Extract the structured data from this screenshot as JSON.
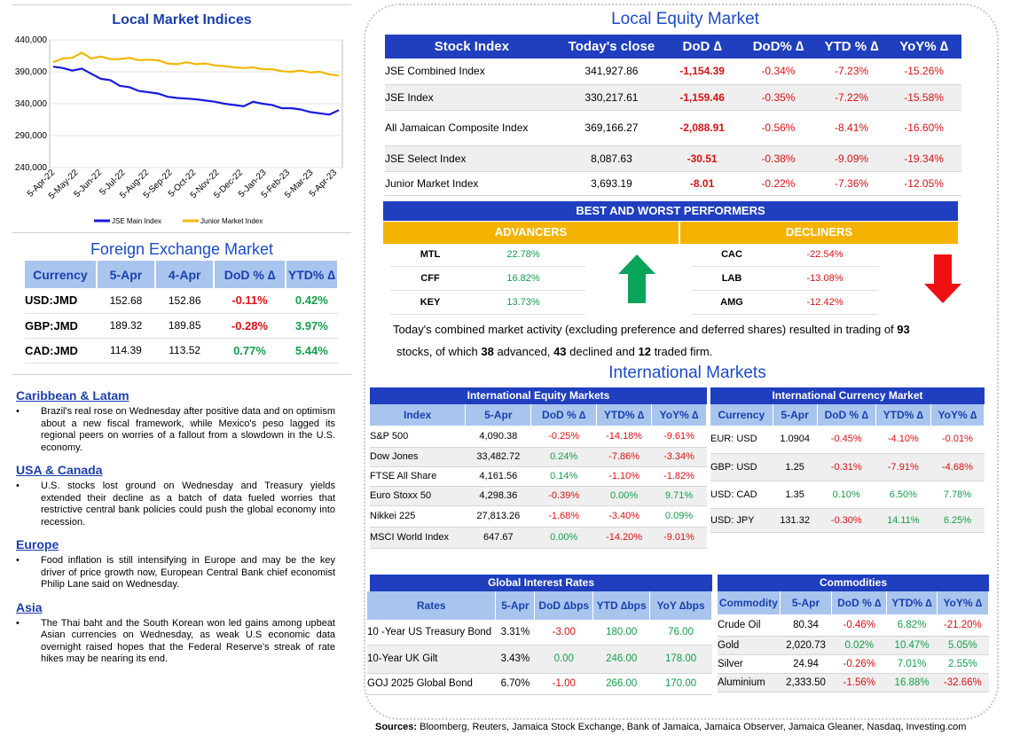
{
  "local_indices": {
    "title": "Local Market Indices",
    "chart_data": {
      "type": "line",
      "title": "Local Market Indices",
      "ylim": [
        240000,
        440000
      ],
      "y_ticks": [
        "440,000",
        "390,000",
        "340,000",
        "290,000",
        "240,000"
      ],
      "y_tick_values": [
        440000,
        390000,
        340000,
        290000,
        240000
      ],
      "x_ticks": [
        "5-Apr-22",
        "5-May-22",
        "5-Jun-22",
        "5-Jul-22",
        "5-Aug-22",
        "5-Sep-22",
        "5-Oct-22",
        "5-Nov-22",
        "5-Dec-22",
        "5-Jan-23",
        "5-Feb-23",
        "5-Mar-23",
        "5-Apr-23"
      ],
      "series": [
        {
          "name": "JSE Main Index",
          "color": "#1a1adf",
          "values": [
            398000,
            396000,
            392000,
            395000,
            387000,
            379000,
            377000,
            368000,
            366000,
            360000,
            358000,
            356000,
            351000,
            349000,
            348000,
            347000,
            345000,
            343000,
            340000,
            338000,
            336000,
            343000,
            340000,
            338000,
            333000,
            333000,
            331000,
            327000,
            325000,
            323000,
            330000
          ]
        },
        {
          "name": "Junior Market Index",
          "color": "#f2b705",
          "values": [
            405000,
            411000,
            412000,
            420000,
            411000,
            414000,
            410000,
            410000,
            412000,
            408000,
            409000,
            408000,
            403000,
            402000,
            405000,
            402000,
            403000,
            400000,
            399000,
            397000,
            396000,
            397000,
            394000,
            394000,
            391000,
            390000,
            392000,
            389000,
            390000,
            386000,
            384000
          ]
        }
      ]
    }
  },
  "fx": {
    "title": "Foreign Exchange Market",
    "headers": [
      "Currency",
      "5-Apr",
      "4-Apr",
      "DoD % ∆",
      "YTD% ∆"
    ],
    "rows": [
      {
        "c": "USD:JMD",
        "a": "152.68",
        "b": "152.86",
        "d": "-0.11%",
        "y": "0.42%"
      },
      {
        "c": "GBP:JMD",
        "a": "189.32",
        "b": "189.85",
        "d": "-0.28%",
        "y": "3.97%"
      },
      {
        "c": "CAD:JMD",
        "a": "114.39",
        "b": "113.52",
        "d": "0.77%",
        "y": "5.44%"
      }
    ]
  },
  "news": [
    {
      "h": "Caribbean & Latam",
      "p": "Brazil's real rose on Wednesday after positive data and on optimism about a new fiscal framework, while Mexico's peso lagged its regional peers on worries of a fallout from a slowdown in the U.S. economy."
    },
    {
      "h": "USA & Canada",
      "p": "U.S. stocks lost ground on Wednesday and Treasury yields extended their decline as a batch of data fueled worries that restrictive central bank policies could push the global economy into recession."
    },
    {
      "h": "Europe",
      "p": "Food inflation is still intensifying in Europe and may be the key driver of price growth now, European Central Bank chief economist Philip Lane said on Wednesday."
    },
    {
      "h": "Asia",
      "p": "The Thai baht and the South Korean won led gains among upbeat Asian currencies on Wednesday, as weak U.S economic data overnight raised hopes that the Federal Reserve's streak of rate hikes may be nearing its end."
    }
  ],
  "local_equity": {
    "title": "Local Equity Market",
    "headers": [
      "Stock Index",
      "Today's close",
      "DoD  ∆",
      "DoD% ∆",
      "YTD % ∆",
      "YoY% ∆"
    ],
    "rows": [
      {
        "n": "JSE Combined Index",
        "c": "341,927.86",
        "d": "-1,154.39",
        "dp": "-0.34%",
        "y": "-7.23%",
        "yy": "-15.26%"
      },
      {
        "n": "JSE Index",
        "c": "330,217.61",
        "d": "-1,159.46",
        "dp": "-0.35%",
        "y": "-7.22%",
        "yy": "-15.58%"
      },
      {
        "n": "All Jamaican Composite Index",
        "c": "369,166.27",
        "d": "-2,088.91",
        "dp": "-0.56%",
        "y": "-8.41%",
        "yy": "-16.60%"
      },
      {
        "n": "JSE Select Index",
        "c": "8,087.63",
        "d": "-30.51",
        "dp": "-0.38%",
        "y": "-9.09%",
        "yy": "-19.34%"
      },
      {
        "n": "Junior Market Index",
        "c": "3,693.19",
        "d": "-8.01",
        "dp": "-0.22%",
        "y": "-7.36%",
        "yy": "-12.05%"
      }
    ]
  },
  "performers": {
    "title": "BEST AND WORST PERFORMERS",
    "adv_label": "ADVANCERS",
    "dec_label": "DECLINERS",
    "advancers": [
      {
        "t": "MTL",
        "v": "22.78%"
      },
      {
        "t": "CFF",
        "v": "16.82%"
      },
      {
        "t": "KEY",
        "v": "13.73%"
      }
    ],
    "decliners": [
      {
        "t": "CAC",
        "v": "-22.54%"
      },
      {
        "t": "LAB",
        "v": "-13.08%"
      },
      {
        "t": "AMG",
        "v": "-12.42%"
      }
    ]
  },
  "summary": {
    "t1": "Today's combined market activity (excluding preference and deferred shares) resulted in trading of ",
    "n1": "93",
    "t2": "stocks, of which ",
    "n2": "38",
    "t3": " advanced, ",
    "n3": "43",
    "t4": " declined and ",
    "n4": "12",
    "t5": " traded firm."
  },
  "intl_title": "International Markets",
  "intl_equity": {
    "title": "International Equity Markets",
    "headers": [
      "Index",
      "5-Apr",
      "DoD % ∆",
      "YTD% ∆",
      "YoY% ∆"
    ],
    "rows": [
      {
        "n": "S&P 500",
        "a": "4,090.38",
        "d": "-0.25%",
        "y": "-14.18%",
        "yy": "-9.61%"
      },
      {
        "n": "Dow Jones",
        "a": "33,482.72",
        "d": "0.24%",
        "y": "-7.86%",
        "yy": "-3.34%"
      },
      {
        "n": "FTSE All Share",
        "a": "4,161.56",
        "d": "0.14%",
        "y": "-1.10%",
        "yy": "-1.82%"
      },
      {
        "n": "Euro Stoxx 50",
        "a": "4,298.36",
        "d": "-0.39%",
        "y": "0.00%",
        "yy": "9.71%"
      },
      {
        "n": "Nikkei 225",
        "a": "27,813.26",
        "d": "-1.68%",
        "y": "-3.40%",
        "yy": "0.09%"
      },
      {
        "n": "MSCI World Index",
        "a": "647.67",
        "d": "0.00%",
        "y": "-14.20%",
        "yy": "-9.01%"
      }
    ]
  },
  "intl_currency": {
    "title": "International Currency Market",
    "headers": [
      "Currency",
      "5-Apr",
      "DoD % ∆",
      "YTD% ∆",
      "YoY% ∆"
    ],
    "rows": [
      {
        "n": "EUR: USD",
        "a": "1.0904",
        "d": "-0.45%",
        "y": "-4.10%",
        "yy": "-0.01%"
      },
      {
        "n": "GBP: USD",
        "a": "1.25",
        "d": "-0.31%",
        "y": "-7.91%",
        "yy": "-4.68%"
      },
      {
        "n": "USD: CAD",
        "a": "1.35",
        "d": "0.10%",
        "y": "6.50%",
        "yy": "7.78%"
      },
      {
        "n": "USD: JPY",
        "a": "131.32",
        "d": "-0.30%",
        "y": "14.11%",
        "yy": "6.25%"
      }
    ]
  },
  "rates": {
    "title": "Global Interest Rates",
    "headers": [
      "Rates",
      "5-Apr",
      "DoD ∆bps",
      "YTD ∆bps",
      "YoY ∆bps"
    ],
    "rows": [
      {
        "n": "10 -Year US Treasury Bond",
        "a": "3.31%",
        "d": "-3.00",
        "y": "180.00",
        "yy": "76.00"
      },
      {
        "n": "10-Year UK Gilt",
        "a": "3.43%",
        "d": "0.00",
        "y": "246.00",
        "yy": "178.00"
      },
      {
        "n": "GOJ 2025 Global Bond",
        "a": "6.70%",
        "d": "-1.00",
        "y": "266.00",
        "yy": "170.00"
      }
    ]
  },
  "commodities": {
    "title": "Commodities",
    "headers": [
      "Commodity",
      "5-Apr",
      "DoD % ∆",
      "YTD% ∆",
      "YoY% ∆"
    ],
    "rows": [
      {
        "n": "Crude Oil",
        "a": "80.34",
        "d": "-0.46%",
        "y": "6.82%",
        "yy": "-21.20%"
      },
      {
        "n": "Gold",
        "a": "2,020.73",
        "d": "0.02%",
        "y": "10.47%",
        "yy": "5.05%"
      },
      {
        "n": "Silver",
        "a": "24.94",
        "d": "-0.26%",
        "y": "7.01%",
        "yy": "2.55%"
      },
      {
        "n": "Aluminium",
        "a": "2,333.50",
        "d": "-1.56%",
        "y": "16.88%",
        "yy": "-32.66%"
      }
    ]
  },
  "sources": {
    "label": "Sources:",
    "text": " Bloomberg, Reuters, Jamaica Stock Exchange, Bank of Jamaica, Jamaica Observer, Jamaica Gleaner, Nasdaq, Investing.com"
  },
  "colors": {
    "neg": "#e01010",
    "pos": "#11a04a",
    "header_blue": "#1f3fbf",
    "header_light": "#a9c5ee",
    "gold": "#f5b301"
  }
}
